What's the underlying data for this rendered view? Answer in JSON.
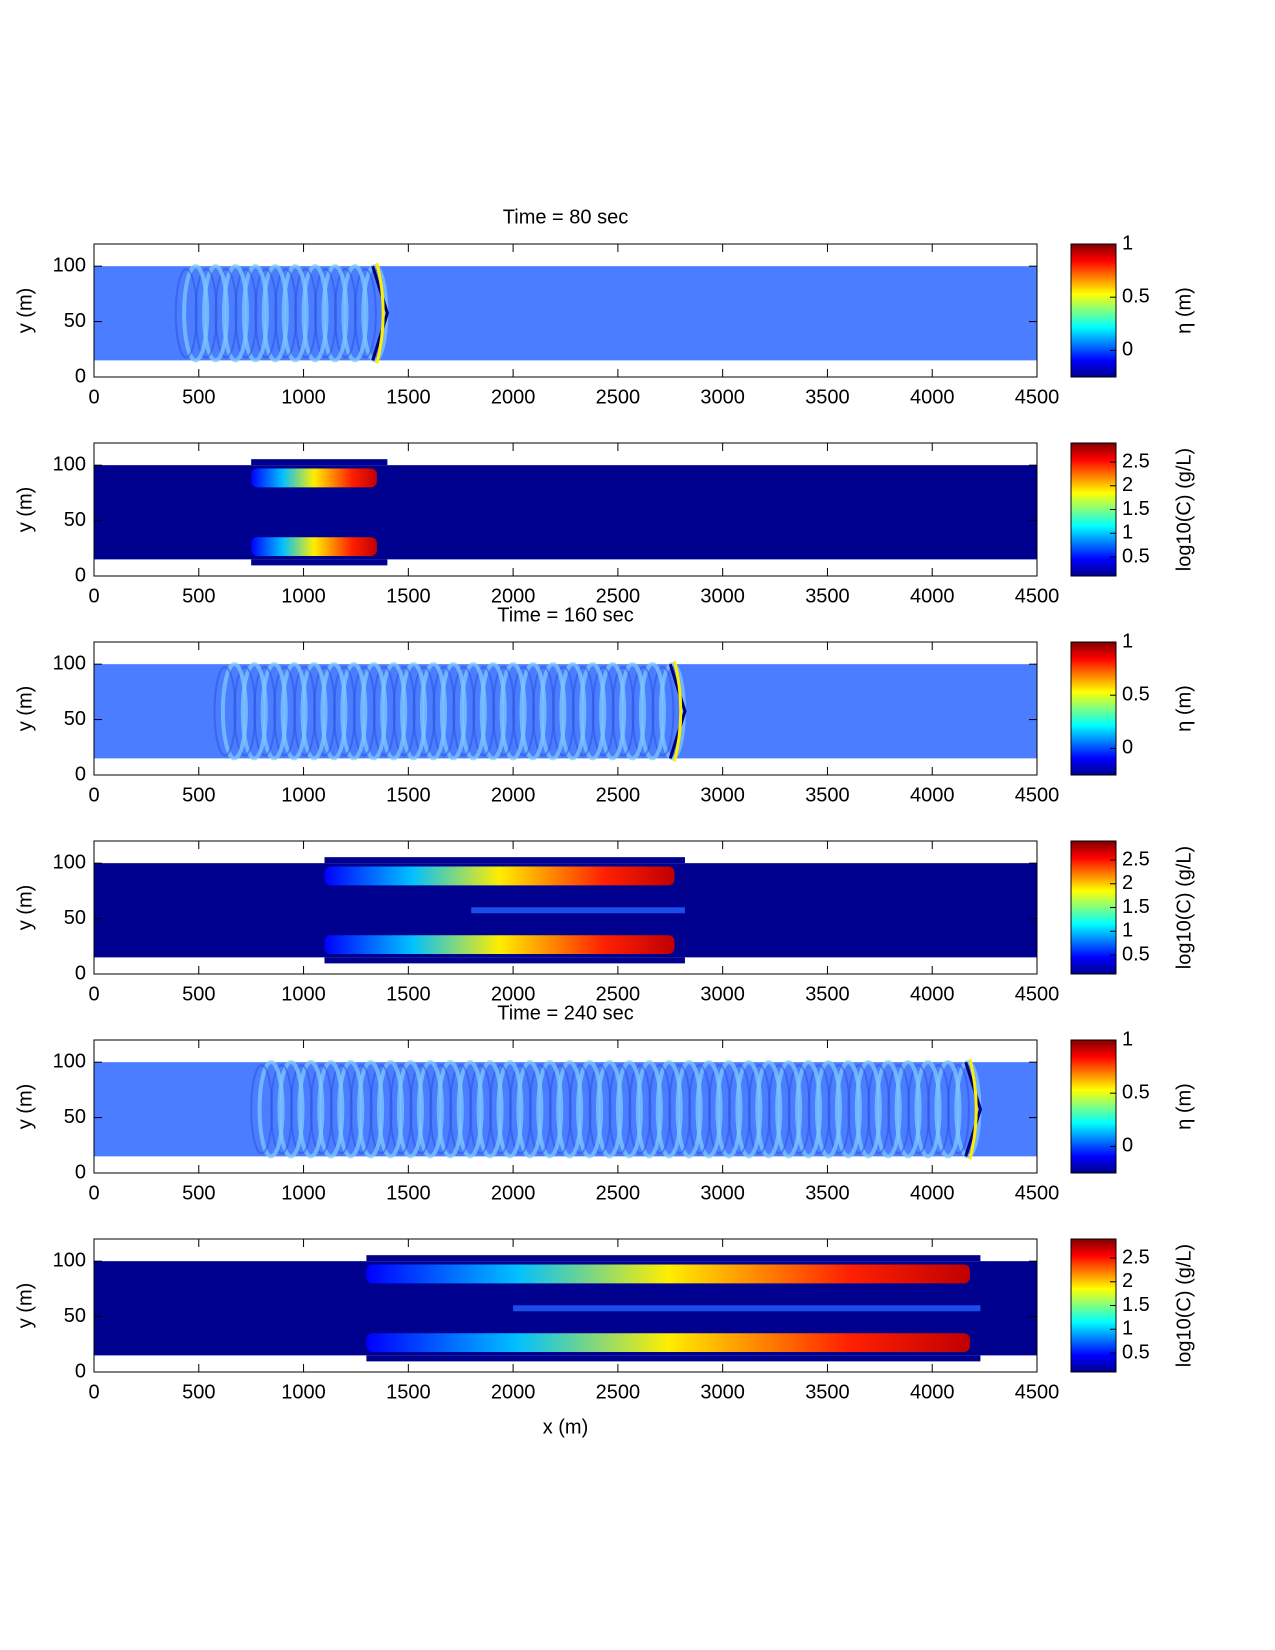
{
  "chart_data": [
    {
      "type": "heatmap",
      "title": "Time = 80 sec",
      "ylabel": "y (m)",
      "xlim": [
        0,
        4500
      ],
      "xticks": [
        0,
        500,
        1000,
        1500,
        2000,
        2500,
        3000,
        3500,
        4000,
        4500
      ],
      "ylim": [
        0,
        120
      ],
      "yticks": [
        0,
        50,
        100
      ],
      "colormap": "jet",
      "field": "eta",
      "colorbar": {
        "label": "η (m)",
        "lim": [
          -0.25,
          1
        ],
        "ticks": [
          0,
          0.5,
          1
        ]
      }
    },
    {
      "type": "heatmap",
      "ylabel": "y (m)",
      "xlim": [
        0,
        4500
      ],
      "xticks": [
        0,
        500,
        1000,
        1500,
        2000,
        2500,
        3000,
        3500,
        4000,
        4500
      ],
      "ylim": [
        0,
        120
      ],
      "yticks": [
        0,
        50,
        100
      ],
      "colormap": "jet",
      "field": "concentration",
      "colorbar": {
        "label": "log10(C) (g/L)",
        "lim": [
          0.1,
          2.9
        ],
        "ticks": [
          0.5,
          1,
          1.5,
          2,
          2.5
        ]
      }
    },
    {
      "type": "heatmap",
      "title": "Time = 160 sec",
      "ylabel": "y (m)",
      "xlim": [
        0,
        4500
      ],
      "xticks": [
        0,
        500,
        1000,
        1500,
        2000,
        2500,
        3000,
        3500,
        4000,
        4500
      ],
      "ylim": [
        0,
        120
      ],
      "yticks": [
        0,
        50,
        100
      ],
      "colormap": "jet",
      "field": "eta",
      "colorbar": {
        "label": "η (m)",
        "lim": [
          -0.25,
          1
        ],
        "ticks": [
          0,
          0.5,
          1
        ]
      }
    },
    {
      "type": "heatmap",
      "ylabel": "y (m)",
      "xlim": [
        0,
        4500
      ],
      "xticks": [
        0,
        500,
        1000,
        1500,
        2000,
        2500,
        3000,
        3500,
        4000,
        4500
      ],
      "ylim": [
        0,
        120
      ],
      "yticks": [
        0,
        50,
        100
      ],
      "colormap": "jet",
      "field": "concentration",
      "colorbar": {
        "label": "log10(C) (g/L)",
        "lim": [
          0.1,
          2.9
        ],
        "ticks": [
          0.5,
          1,
          1.5,
          2,
          2.5
        ]
      }
    },
    {
      "type": "heatmap",
      "title": "Time = 240 sec",
      "ylabel": "y (m)",
      "xlim": [
        0,
        4500
      ],
      "xticks": [
        0,
        500,
        1000,
        1500,
        2000,
        2500,
        3000,
        3500,
        4000,
        4500
      ],
      "ylim": [
        0,
        120
      ],
      "yticks": [
        0,
        50,
        100
      ],
      "colormap": "jet",
      "field": "eta",
      "colorbar": {
        "label": "η (m)",
        "lim": [
          -0.25,
          1
        ],
        "ticks": [
          0,
          0.5,
          1
        ]
      }
    },
    {
      "type": "heatmap",
      "xlabel": "x (m)",
      "ylabel": "y (m)",
      "xlim": [
        0,
        4500
      ],
      "xticks": [
        0,
        500,
        1000,
        1500,
        2000,
        2500,
        3000,
        3500,
        4000,
        4500
      ],
      "ylim": [
        0,
        120
      ],
      "yticks": [
        0,
        50,
        100
      ],
      "colormap": "jet",
      "field": "concentration",
      "colorbar": {
        "label": "log10(C) (g/L)",
        "lim": [
          0.1,
          2.9
        ],
        "ticks": [
          0.5,
          1,
          1.5,
          2,
          2.5
        ]
      }
    }
  ]
}
